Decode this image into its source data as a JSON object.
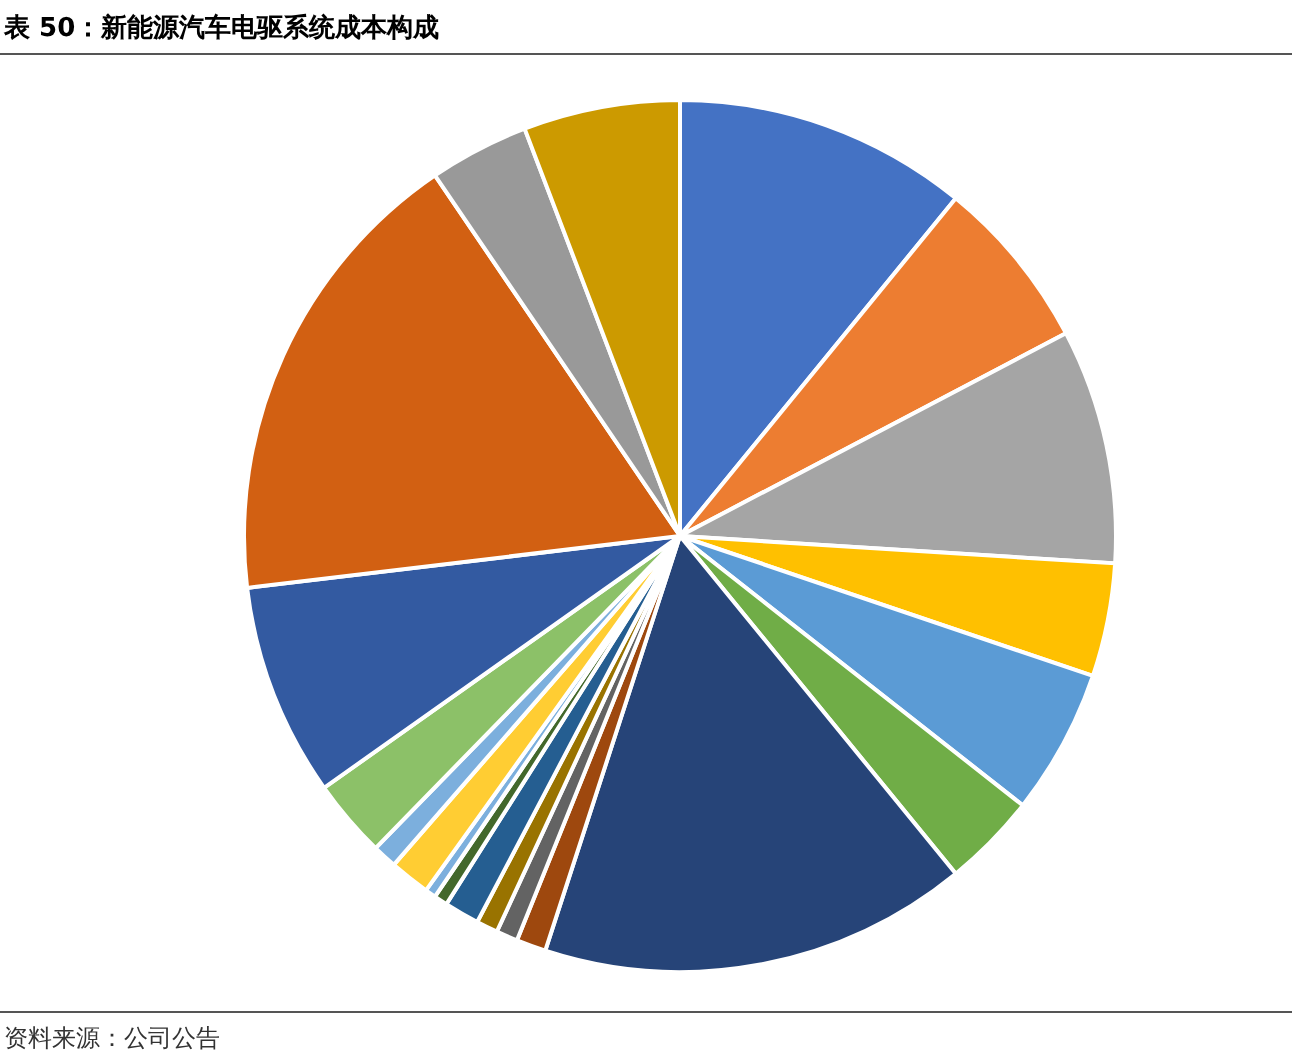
{
  "chart_data": {
    "type": "pie",
    "title": "表 50：新能源汽车电驱系统成本构成",
    "annotations": [
      "资料来源：公司公告"
    ],
    "categories": [
      null,
      null,
      null,
      null,
      null,
      null,
      null,
      null,
      null,
      null,
      null,
      null,
      null,
      null,
      null,
      null,
      null,
      null,
      null,
      null
    ],
    "values": [
      10.9,
      6.4,
      8.7,
      4.2,
      5.4,
      3.5,
      15.9,
      1.1,
      0.8,
      0.8,
      1.3,
      0.5,
      0.4,
      1.5,
      0.9,
      2.9,
      7.9,
      17.4,
      3.7,
      5.8
    ],
    "colors": [
      "#4472c4",
      "#ed7d31",
      "#a5a5a5",
      "#ffc000",
      "#5b9bd5",
      "#70ad47",
      "#264478",
      "#9e480e",
      "#636363",
      "#997300",
      "#255e91",
      "#43682b",
      "#7cafdd",
      "#ffcd33",
      "#7cafdd",
      "#8cc168",
      "#335aa1",
      "#d26012",
      "#999999",
      "#cc9a00"
    ]
  }
}
